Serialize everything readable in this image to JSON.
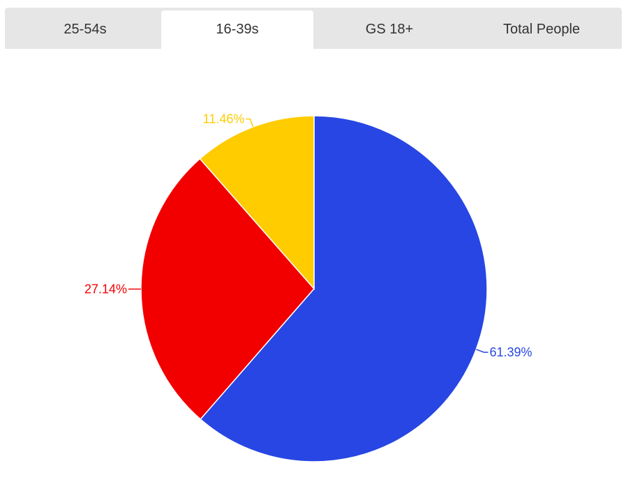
{
  "tabs": [
    {
      "label": "25-54s",
      "active": false
    },
    {
      "label": "16-39s",
      "active": true
    },
    {
      "label": "GS 18+",
      "active": false
    },
    {
      "label": "Total People",
      "active": false
    }
  ],
  "chart_data": {
    "type": "pie",
    "start": "12 o'clock",
    "direction": "clockwise",
    "slices": [
      {
        "value": 61.39,
        "label": "61.39%",
        "color": "#2746e3"
      },
      {
        "value": 27.14,
        "label": "27.14%",
        "color": "#f20000"
      },
      {
        "value": 11.46,
        "label": "11.46%",
        "color": "#ffcc00"
      }
    ]
  }
}
